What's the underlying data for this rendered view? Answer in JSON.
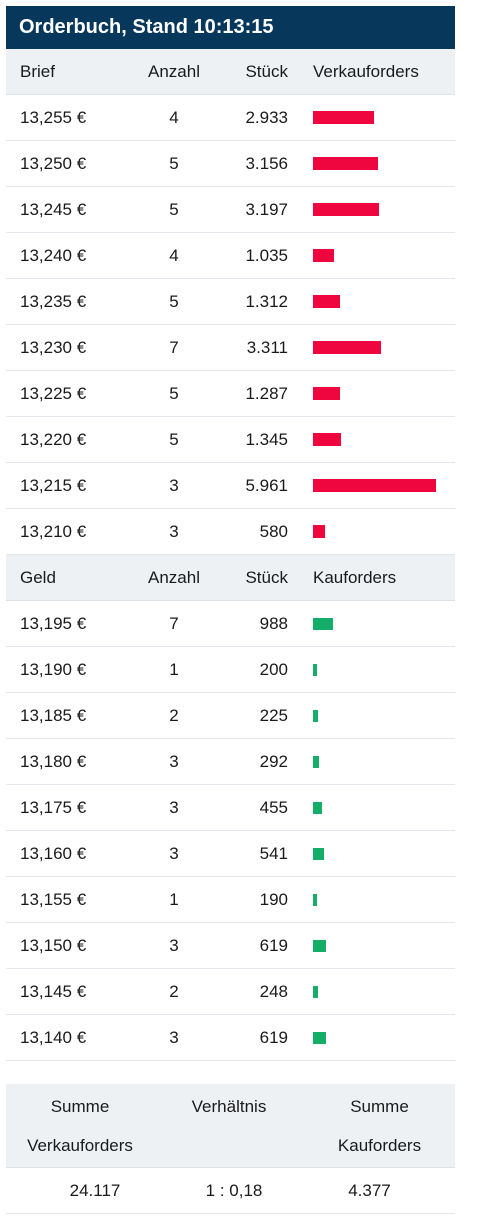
{
  "title": "Orderbuch, Stand 10:13:15",
  "colors": {
    "header_bg": "#07375a",
    "sell_bar": "#f0063e",
    "buy_bar": "#14ae68",
    "subheader_bg": "#eef1f4"
  },
  "sell": {
    "headers": {
      "price": "Brief",
      "count": "Anzahl",
      "qty": "Stück",
      "bar": "Verkauforders"
    },
    "rows": [
      {
        "price": "13,255 €",
        "count": "4",
        "qty": "2.933",
        "qty_value": 2933
      },
      {
        "price": "13,250 €",
        "count": "5",
        "qty": "3.156",
        "qty_value": 3156
      },
      {
        "price": "13,245 €",
        "count": "5",
        "qty": "3.197",
        "qty_value": 3197
      },
      {
        "price": "13,240 €",
        "count": "4",
        "qty": "1.035",
        "qty_value": 1035
      },
      {
        "price": "13,235 €",
        "count": "5",
        "qty": "1.312",
        "qty_value": 1312
      },
      {
        "price": "13,230 €",
        "count": "7",
        "qty": "3.311",
        "qty_value": 3311
      },
      {
        "price": "13,225 €",
        "count": "5",
        "qty": "1.287",
        "qty_value": 1287
      },
      {
        "price": "13,220 €",
        "count": "5",
        "qty": "1.345",
        "qty_value": 1345
      },
      {
        "price": "13,215 €",
        "count": "3",
        "qty": "5.961",
        "qty_value": 5961
      },
      {
        "price": "13,210 €",
        "count": "3",
        "qty": "580",
        "qty_value": 580
      }
    ]
  },
  "buy": {
    "headers": {
      "price": "Geld",
      "count": "Anzahl",
      "qty": "Stück",
      "bar": "Kauforders"
    },
    "rows": [
      {
        "price": "13,195 €",
        "count": "7",
        "qty": "988",
        "qty_value": 988
      },
      {
        "price": "13,190 €",
        "count": "1",
        "qty": "200",
        "qty_value": 200
      },
      {
        "price": "13,185 €",
        "count": "2",
        "qty": "225",
        "qty_value": 225
      },
      {
        "price": "13,180 €",
        "count": "3",
        "qty": "292",
        "qty_value": 292
      },
      {
        "price": "13,175 €",
        "count": "3",
        "qty": "455",
        "qty_value": 455
      },
      {
        "price": "13,160 €",
        "count": "3",
        "qty": "541",
        "qty_value": 541
      },
      {
        "price": "13,155 €",
        "count": "1",
        "qty": "190",
        "qty_value": 190
      },
      {
        "price": "13,150 €",
        "count": "3",
        "qty": "619",
        "qty_value": 619
      },
      {
        "price": "13,145 €",
        "count": "2",
        "qty": "248",
        "qty_value": 248
      },
      {
        "price": "13,140 €",
        "count": "3",
        "qty": "619",
        "qty_value": 619
      }
    ]
  },
  "summary": {
    "sell_label_1": "Summe",
    "sell_label_2": "Verkauforders",
    "ratio_label": "Verhältnis",
    "buy_label_1": "Summe",
    "buy_label_2": "Kauforders",
    "sell_total": "24.117",
    "ratio": "1 : 0,18",
    "buy_total": "4.377"
  }
}
